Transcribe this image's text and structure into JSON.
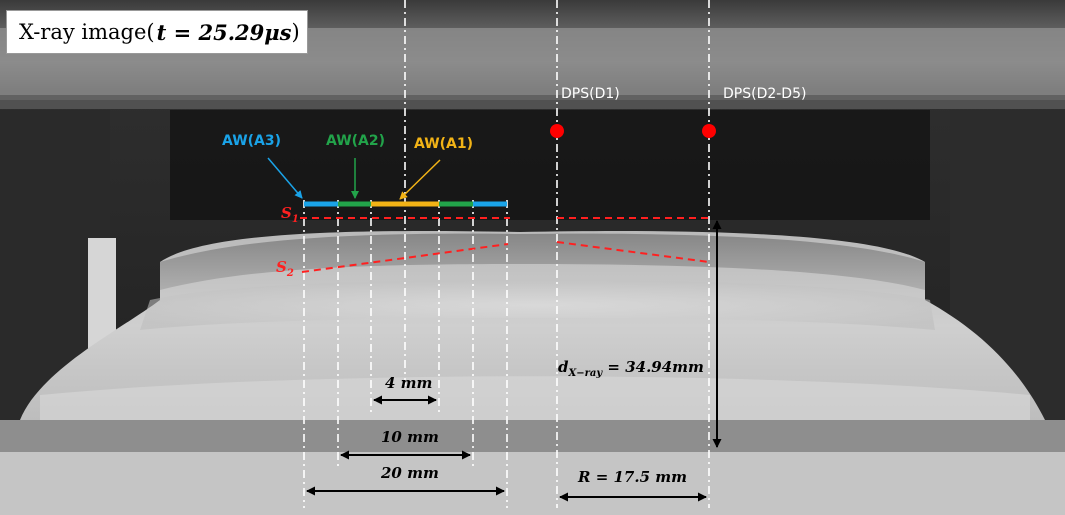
{
  "title": {
    "prefix": "X-ray image(",
    "math": "t = 25.29μs",
    "suffix": ")"
  },
  "sensors": {
    "d1": "DPS(D1)",
    "d2_d5": "DPS(D2-D5)",
    "marker_color": "#ff0000"
  },
  "windows": {
    "a1": {
      "label": "AW(A1)",
      "color": "#f2b316"
    },
    "a2": {
      "label": "AW(A2)",
      "color": "#22a34a"
    },
    "a3": {
      "label": "AW(A3)",
      "color": "#1aa3e8"
    }
  },
  "surfaces": {
    "s1_base": "S",
    "s1_sub": "1",
    "s2_base": "S",
    "s2_sub": "2",
    "color": "#ff2020"
  },
  "measurements": {
    "dim_4": "4 mm",
    "dim_10": "10 mm",
    "dim_20": "20 mm",
    "radius": "R = 17.5 mm",
    "d_base": "d",
    "d_sub": "X−ray",
    "d_value": " = 34.94mm"
  }
}
